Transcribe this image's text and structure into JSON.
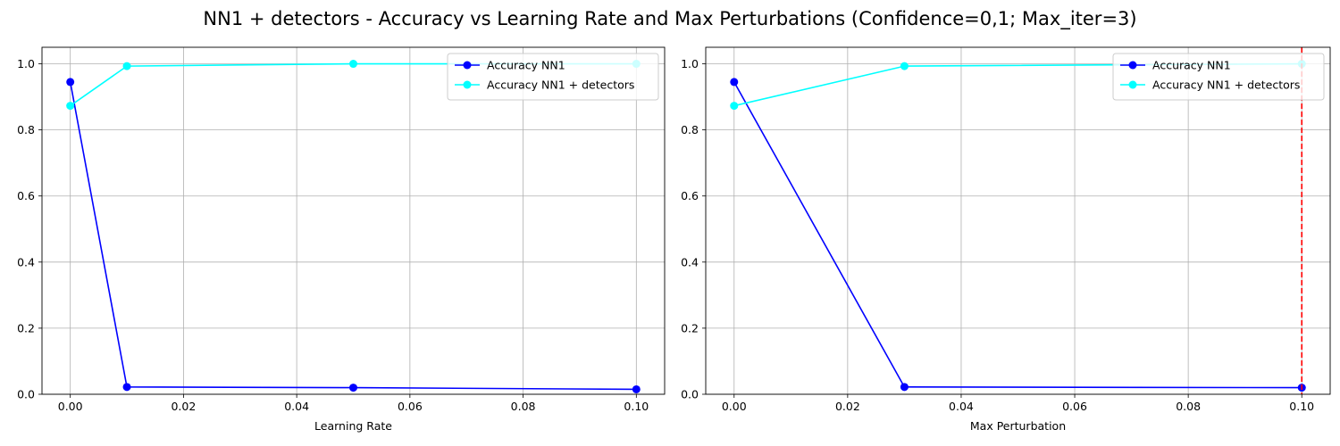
{
  "figure": {
    "suptitle": "NN1 + detectors - Accuracy vs Learning Rate and Max Perturbations (Confidence=0,1; Max_iter=3)"
  },
  "chart_data": [
    {
      "type": "line",
      "title": "",
      "xlabel": "Learning Rate",
      "ylabel": "",
      "xlim": [
        -0.005,
        0.105
      ],
      "ylim": [
        0,
        1.05
      ],
      "xticks": [
        0.0,
        0.02,
        0.04,
        0.06,
        0.08,
        0.1
      ],
      "xtick_labels": [
        "0.00",
        "0.02",
        "0.04",
        "0.06",
        "0.08",
        "0.10"
      ],
      "yticks": [
        0.0,
        0.2,
        0.4,
        0.6,
        0.8,
        1.0
      ],
      "ytick_labels": [
        "0.0",
        "0.2",
        "0.4",
        "0.6",
        "0.8",
        "1.0"
      ],
      "grid": true,
      "legend_position": "upper right",
      "x": [
        0.0,
        0.01,
        0.05,
        0.1
      ],
      "series": [
        {
          "name": "Accuracy NN1",
          "color": "#0000ff",
          "marker": "circle",
          "values": [
            0.945,
            0.022,
            0.02,
            0.015
          ]
        },
        {
          "name": "Accuracy NN1 + detectors",
          "color": "#00ffff",
          "marker": "circle",
          "values": [
            0.873,
            0.993,
            1.0,
            1.0
          ]
        }
      ]
    },
    {
      "type": "line",
      "title": "",
      "xlabel": "Max Perturbation",
      "ylabel": "",
      "xlim": [
        -0.005,
        0.105
      ],
      "ylim": [
        0,
        1.05
      ],
      "xticks": [
        0.0,
        0.02,
        0.04,
        0.06,
        0.08,
        0.1
      ],
      "xtick_labels": [
        "0.00",
        "0.02",
        "0.04",
        "0.06",
        "0.08",
        "0.10"
      ],
      "yticks": [
        0.0,
        0.2,
        0.4,
        0.6,
        0.8,
        1.0
      ],
      "ytick_labels": [
        "0.0",
        "0.2",
        "0.4",
        "0.6",
        "0.8",
        "1.0"
      ],
      "grid": true,
      "legend_position": "upper right",
      "x": [
        0.0,
        0.03,
        0.1
      ],
      "series": [
        {
          "name": "Accuracy NN1",
          "color": "#0000ff",
          "marker": "circle",
          "values": [
            0.945,
            0.022,
            0.02
          ]
        },
        {
          "name": "Accuracy NN1 + detectors",
          "color": "#00ffff",
          "marker": "circle",
          "values": [
            0.873,
            0.993,
            1.0
          ]
        }
      ],
      "vlines": [
        {
          "x": 0.1,
          "color": "#ff0000",
          "style": "dashed"
        }
      ]
    }
  ]
}
